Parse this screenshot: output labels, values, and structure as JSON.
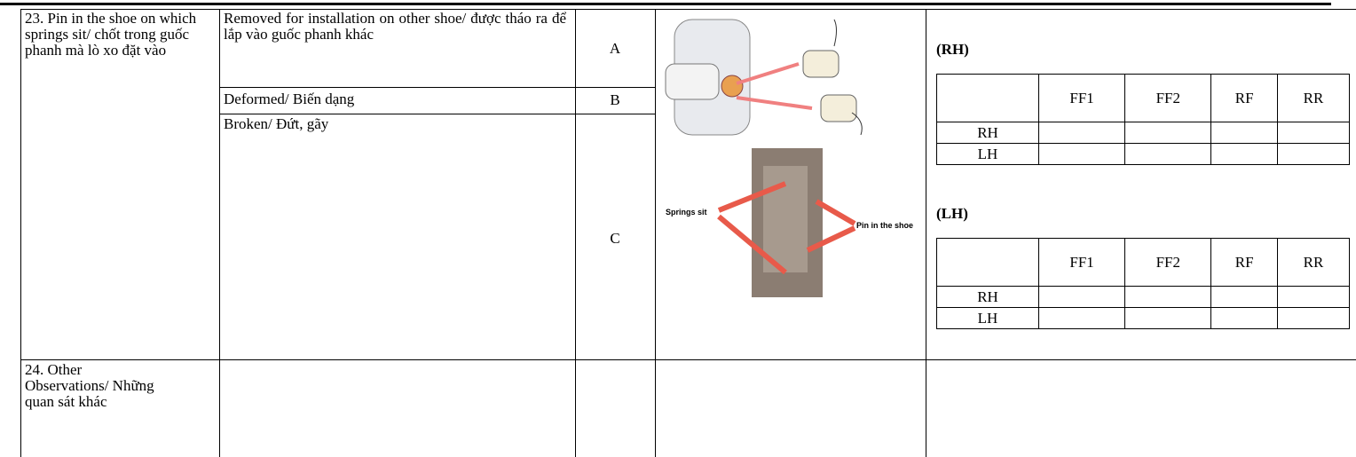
{
  "rows": [
    {
      "item": "23. Pin in the shoe on which springs sit/ chốt trong guốc phanh mà lò xo đặt vào",
      "conditions": [
        {
          "text": "Removed for installation on other shoe/ được tháo ra để lắp vào guốc phanh khác",
          "code": "A"
        },
        {
          "text": "Deformed/ Biến dạng",
          "code": "B"
        },
        {
          "text": "Broken/  Đứt, gãy",
          "code": "C"
        }
      ],
      "image_labels": [
        "Springs sit",
        "Pin in the shoe"
      ],
      "tables": [
        {
          "title": "(RH)",
          "columns": [
            "FF1",
            "FF2",
            "RF",
            "RR"
          ],
          "rows": [
            "RH",
            "LH"
          ]
        },
        {
          "title": "(LH)",
          "columns": [
            "FF1",
            "FF2",
            "RF",
            "RR"
          ],
          "rows": [
            "RH",
            "LH"
          ]
        }
      ]
    },
    {
      "item": "24. Other Observations/ Những quan sát khác"
    }
  ]
}
